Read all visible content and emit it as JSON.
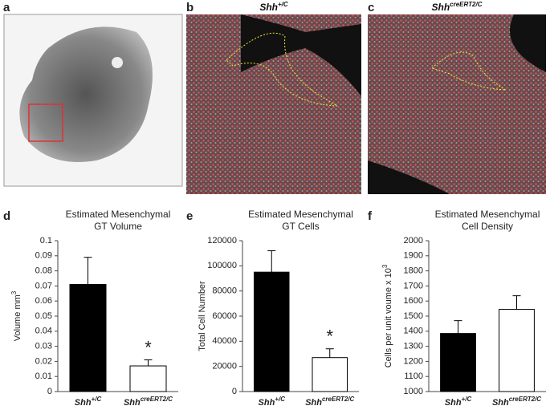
{
  "panels": {
    "labels": [
      "a",
      "b",
      "c",
      "d",
      "e",
      "f"
    ],
    "image_titles": [
      [
        "Shh",
        "+/C"
      ],
      [
        "Shh",
        "creERT2/C"
      ]
    ]
  },
  "chart_data": [
    {
      "type": "bar",
      "title": [
        "Estimated Mesenchymal",
        "GT Volume"
      ],
      "ylabel": [
        "Volume mm",
        "3"
      ],
      "categories": [
        [
          "Shh",
          "+/C"
        ],
        [
          "Shh",
          "creERT2/C"
        ]
      ],
      "values": [
        0.071,
        0.017
      ],
      "errors": [
        0.018,
        0.004
      ],
      "colors": [
        "#000000",
        "#ffffff"
      ],
      "ylim": [
        0,
        0.1
      ],
      "yticks": [
        0,
        0.01,
        0.02,
        0.03,
        0.04,
        0.05,
        0.06,
        0.07,
        0.08,
        0.09,
        0.1
      ],
      "annotation": "*"
    },
    {
      "type": "bar",
      "title": [
        "Estimated Mesenchymal",
        "GT Cells"
      ],
      "ylabel": [
        "Total Cell Number"
      ],
      "categories": [
        [
          "Shh",
          "+/C"
        ],
        [
          "Shh",
          "creERT2/C"
        ]
      ],
      "values": [
        95000,
        27000
      ],
      "errors": [
        17000,
        7000
      ],
      "colors": [
        "#000000",
        "#ffffff"
      ],
      "ylim": [
        0,
        120000
      ],
      "yticks": [
        0,
        20000,
        40000,
        60000,
        80000,
        100000,
        120000
      ],
      "annotation": "*"
    },
    {
      "type": "bar",
      "title": [
        "Estimated Mesenchymal",
        "Cell Density"
      ],
      "ylabel": [
        "Cells per unit voume x 10",
        "3"
      ],
      "categories": [
        [
          "Shh",
          "+/C"
        ],
        [
          "Shh",
          "creERT2/C"
        ]
      ],
      "values": [
        1385,
        1545
      ],
      "errors": [
        85,
        90
      ],
      "colors": [
        "#000000",
        "#ffffff"
      ],
      "ylim": [
        1000,
        2000
      ],
      "yticks": [
        1000,
        1100,
        1200,
        1300,
        1400,
        1500,
        1600,
        1700,
        1800,
        1900,
        2000
      ]
    }
  ]
}
